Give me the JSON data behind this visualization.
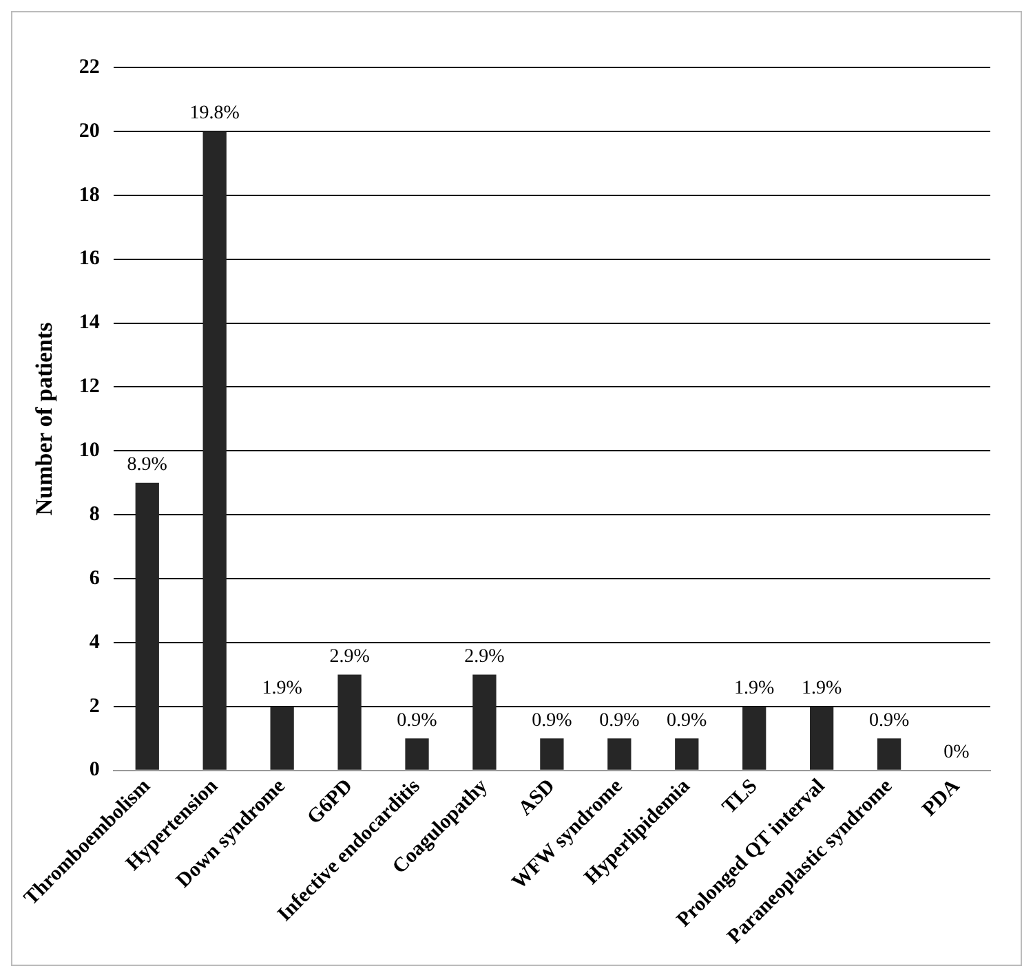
{
  "chart_data": {
    "type": "bar",
    "ylabel": "Number of patients",
    "categories": [
      "Thromboembolism",
      "Hypertension",
      "Down syndrome",
      "G6PD",
      "Infective endocarditis",
      "Coagulopathy",
      "ASD",
      "WFW syndrome",
      "Hyperlipidemia",
      "TLS",
      "Prolonged QT interval",
      "Paraneoplastic syndrome",
      "PDA"
    ],
    "values": [
      9,
      20,
      2,
      3,
      1,
      3,
      1,
      1,
      1,
      2,
      2,
      1,
      0
    ],
    "annotations": [
      {
        "text": "8.9%",
        "x": "Thromboembolism",
        "y": 9
      },
      {
        "text": "19.8%",
        "x": "Hypertension",
        "y": 20
      },
      {
        "text": "1.9%",
        "x": "Down syndrome",
        "y": 2
      },
      {
        "text": "2.9%",
        "x": "G6PD",
        "y": 3
      },
      {
        "text": "0.9%",
        "x": "Infective endocarditis",
        "y": 1
      },
      {
        "text": "2.9%",
        "x": "Coagulopathy",
        "y": 3
      },
      {
        "text": "0.9%",
        "x": "ASD",
        "y": 1
      },
      {
        "text": "0.9%",
        "x": "WFW syndrome",
        "y": 1
      },
      {
        "text": "0.9%",
        "x": "Hyperlipidemia",
        "y": 1
      },
      {
        "text": "1.9%",
        "x": "TLS",
        "y": 2
      },
      {
        "text": "1.9%",
        "x": "Prolonged QT interval",
        "y": 2
      },
      {
        "text": "0.9%",
        "x": "Paraneoplastic syndrome",
        "y": 1
      },
      {
        "text": "0%",
        "x": "PDA",
        "y": 0
      }
    ],
    "color": "#262626",
    "ylim": [
      0,
      22
    ],
    "yticks": [
      0,
      2,
      4,
      6,
      8,
      10,
      12,
      14,
      16,
      18,
      20,
      22
    ],
    "grid": "y",
    "legend": false
  }
}
